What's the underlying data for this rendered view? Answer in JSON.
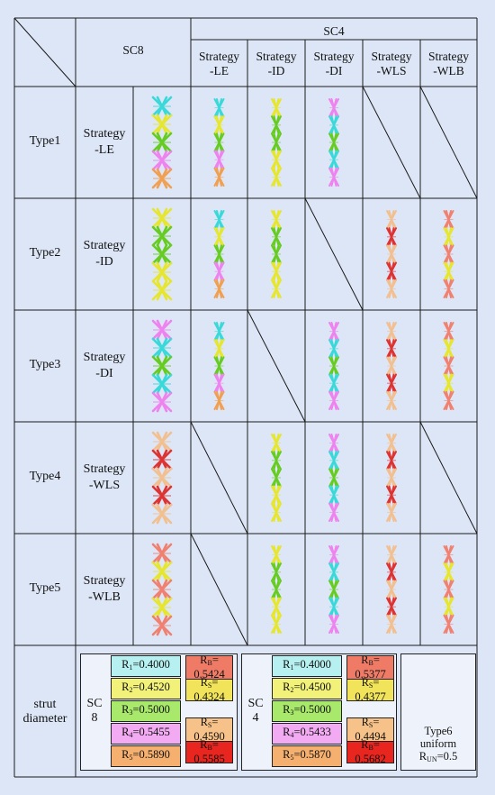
{
  "header": {
    "sc8": "SC8",
    "sc4": "SC4",
    "sc4_strategies": [
      "Strategy\n-LE",
      "Strategy\n-ID",
      "Strategy\n-DI",
      "Strategy\n-WLS",
      "Strategy\n-WLB"
    ]
  },
  "rows": [
    {
      "type": "Type1",
      "strategy": "Strategy\n-LE"
    },
    {
      "type": "Type2",
      "strategy": "Strategy\n-ID"
    },
    {
      "type": "Type3",
      "strategy": "Strategy\n-DI"
    },
    {
      "type": "Type4",
      "strategy": "Strategy\n-WLS"
    },
    {
      "type": "Type5",
      "strategy": "Strategy\n-WLB"
    }
  ],
  "palette": {
    "cyan": "#3ad9d9",
    "yellow": "#e6e62e",
    "green": "#66cc22",
    "pink": "#ee82ee",
    "orange": "#f0a050",
    "red": "#dd3333",
    "tan": "#f2c090",
    "salmon": "#f08070"
  },
  "struts": {
    "sc8": [
      [
        "cyan",
        "yellow",
        "green",
        "pink",
        "orange"
      ],
      [
        "yellow",
        "green",
        "green",
        "yellow",
        "yellow"
      ],
      [
        "pink",
        "cyan",
        "green",
        "cyan",
        "pink"
      ],
      [
        "tan",
        "red",
        "tan",
        "red",
        "tan"
      ],
      [
        "salmon",
        "yellow",
        "salmon",
        "yellow",
        "salmon"
      ]
    ],
    "sc4": [
      [
        [
          "cyan",
          "yellow",
          "green",
          "pink",
          "orange"
        ],
        [
          "yellow",
          "green",
          "green",
          "yellow",
          "yellow"
        ],
        [
          "pink",
          "cyan",
          "green",
          "cyan",
          "pink"
        ],
        null,
        null
      ],
      [
        [
          "cyan",
          "yellow",
          "green",
          "pink",
          "orange"
        ],
        [
          "yellow",
          "green",
          "green",
          "yellow",
          "yellow"
        ],
        null,
        [
          "tan",
          "red",
          "tan",
          "red",
          "tan"
        ],
        [
          "salmon",
          "yellow",
          "salmon",
          "yellow",
          "salmon"
        ]
      ],
      [
        [
          "cyan",
          "yellow",
          "green",
          "pink",
          "orange"
        ],
        null,
        [
          "pink",
          "cyan",
          "green",
          "cyan",
          "pink"
        ],
        [
          "tan",
          "red",
          "tan",
          "red",
          "tan"
        ],
        [
          "salmon",
          "yellow",
          "salmon",
          "yellow",
          "salmon"
        ]
      ],
      [
        null,
        [
          "yellow",
          "green",
          "green",
          "yellow",
          "yellow"
        ],
        [
          "pink",
          "cyan",
          "green",
          "cyan",
          "pink"
        ],
        [
          "tan",
          "red",
          "tan",
          "red",
          "tan"
        ],
        null
      ],
      [
        null,
        [
          "yellow",
          "green",
          "green",
          "yellow",
          "yellow"
        ],
        [
          "pink",
          "cyan",
          "green",
          "cyan",
          "pink"
        ],
        [
          "tan",
          "red",
          "tan",
          "red",
          "tan"
        ],
        [
          "salmon",
          "yellow",
          "salmon",
          "yellow",
          "salmon"
        ]
      ]
    ]
  },
  "diameter": {
    "label": "strut\ndiameter",
    "sc8": {
      "label": "SC\n8",
      "r": [
        {
          "sym": "R",
          "sub": "1",
          "val": "=0.4000",
          "color": "#b7f0f0"
        },
        {
          "sym": "R",
          "sub": "2",
          "val": "=0.4520",
          "color": "#f2f27a"
        },
        {
          "sym": "R",
          "sub": "3",
          "val": "=0.5000",
          "color": "#a8e86b"
        },
        {
          "sym": "R",
          "sub": "4",
          "val": "=0.5455",
          "color": "#f2aaf2"
        },
        {
          "sym": "R",
          "sub": "5",
          "val": "=0.5890",
          "color": "#f5b070"
        }
      ],
      "side": [
        {
          "sym": "R",
          "sub": "B",
          "val": "=\n0.5424",
          "color": "#ef7b66"
        },
        {
          "sym": "R",
          "sub": "S",
          "val": "=\n0.4324",
          "color": "#f2e45a"
        },
        {
          "sym": "R",
          "sub": "S",
          "val": "=\n0.4590",
          "color": "#f7c289"
        },
        {
          "sym": "R",
          "sub": "B",
          "val": "=\n0.5585",
          "color": "#e8251e"
        }
      ]
    },
    "sc4": {
      "label": "SC\n4",
      "r": [
        {
          "sym": "R",
          "sub": "1",
          "val": "=0.4000",
          "color": "#b7f0f0"
        },
        {
          "sym": "R",
          "sub": "2",
          "val": "=0.4500",
          "color": "#f2f27a"
        },
        {
          "sym": "R",
          "sub": "3",
          "val": "=0.5000",
          "color": "#a8e86b"
        },
        {
          "sym": "R",
          "sub": "4",
          "val": "=0.5433",
          "color": "#f2aaf2"
        },
        {
          "sym": "R",
          "sub": "5",
          "val": "=0.5870",
          "color": "#f5b070"
        }
      ],
      "side": [
        {
          "sym": "R",
          "sub": "B",
          "val": "=\n0.5377",
          "color": "#ef7b66"
        },
        {
          "sym": "R",
          "sub": "S",
          "val": "=\n0.4377",
          "color": "#f2e45a"
        },
        {
          "sym": "R",
          "sub": "S",
          "val": "=\n0.4494",
          "color": "#f7c289"
        },
        {
          "sym": "R",
          "sub": "B",
          "val": "=\n0.5682",
          "color": "#e8251e"
        }
      ]
    },
    "type6": {
      "line1": "Type6",
      "line2": "uniform",
      "sym": "R",
      "sub": "UN",
      "val": "=0.5",
      "color": "#8fd93a"
    }
  }
}
